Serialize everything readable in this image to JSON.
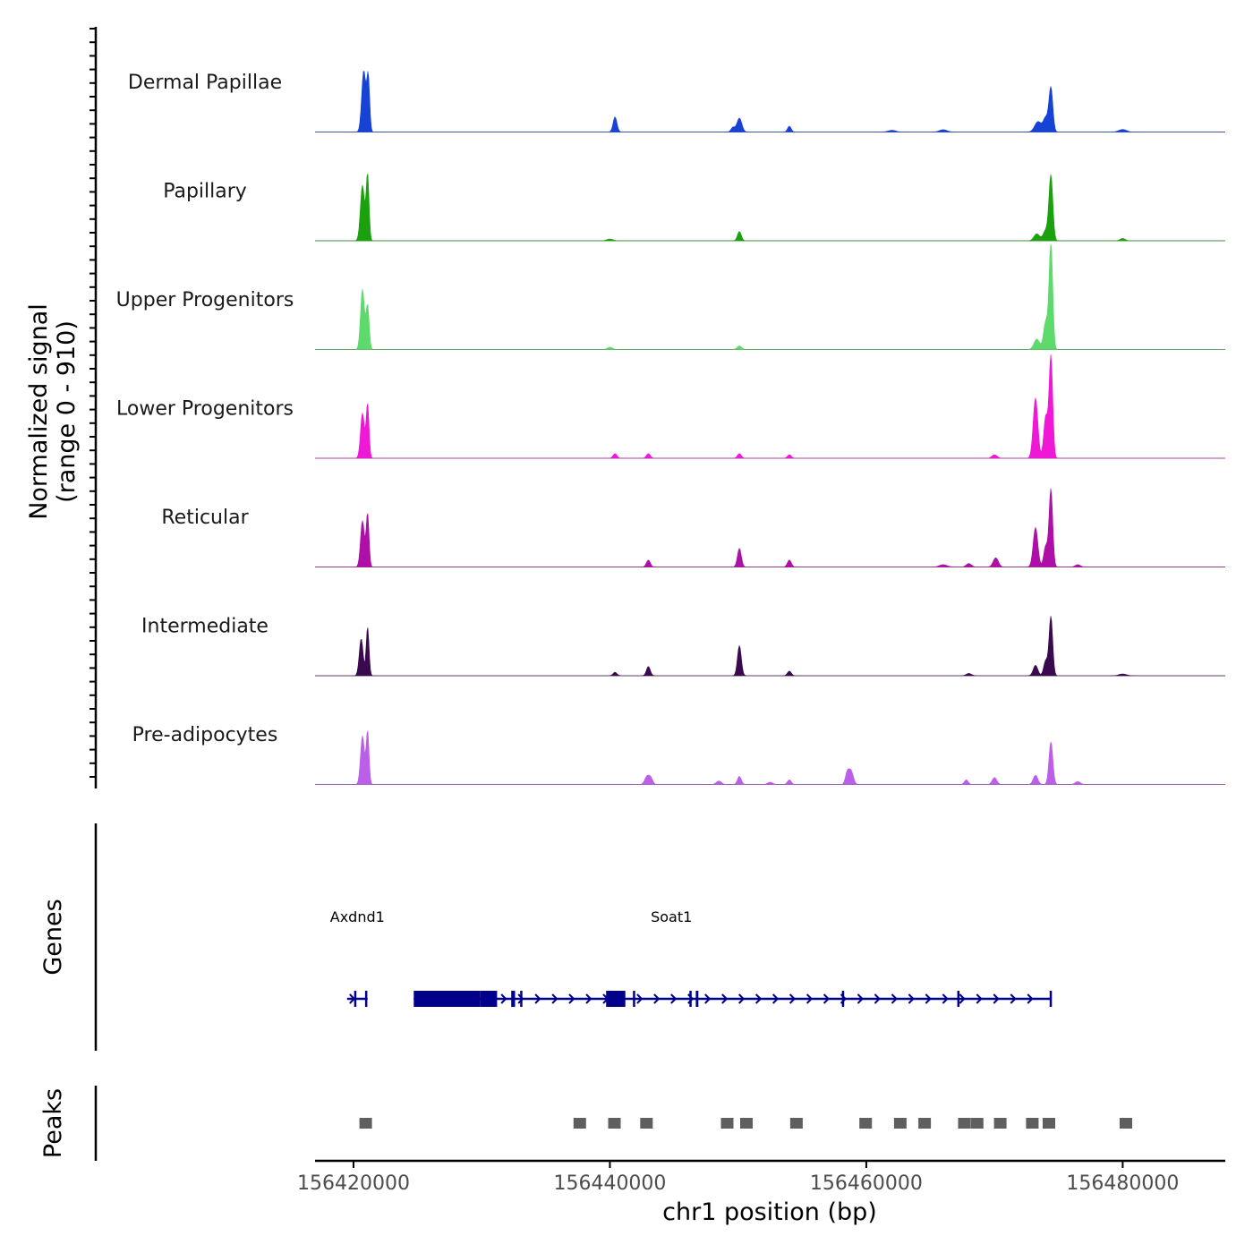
{
  "chart_data": {
    "type": "genome-browser",
    "region": {
      "chromosome": "chr1",
      "start": 156417000,
      "end": 156488000
    },
    "coverage": {
      "axis_title": "Normalized signal",
      "axis_subtitle": "(range 0 - 910)",
      "ylim": [
        0,
        910
      ],
      "tracks": [
        {
          "name": "Dermal Papillae",
          "color": "#1742d6",
          "peaks": [
            [
              156420800,
              530,
              160
            ],
            [
              156421150,
              470,
              110
            ],
            [
              156440400,
              130,
              150
            ],
            [
              156450100,
              120,
              190
            ],
            [
              156449600,
              40,
              150
            ],
            [
              156454000,
              50,
              140
            ],
            [
              156473400,
              90,
              260
            ],
            [
              156474000,
              120,
              190
            ],
            [
              156474400,
              380,
              150
            ],
            [
              156480000,
              22,
              300
            ],
            [
              156466000,
              20,
              300
            ],
            [
              156462000,
              15,
              300
            ]
          ]
        },
        {
          "name": "Papillary",
          "color": "#1aa10d",
          "peaks": [
            [
              156420700,
              480,
              160
            ],
            [
              156421100,
              570,
              110
            ],
            [
              156450100,
              80,
              150
            ],
            [
              156473300,
              60,
              220
            ],
            [
              156474000,
              90,
              200
            ],
            [
              156474400,
              560,
              150
            ],
            [
              156480000,
              20,
              200
            ],
            [
              156440000,
              15,
              250
            ]
          ]
        },
        {
          "name": "Upper Progenitors",
          "color": "#5ed96c",
          "peaks": [
            [
              156420700,
              520,
              150
            ],
            [
              156421100,
              380,
              120
            ],
            [
              156440000,
              20,
              200
            ],
            [
              156450100,
              30,
              180
            ],
            [
              156473300,
              90,
              220
            ],
            [
              156474000,
              240,
              170
            ],
            [
              156474400,
              920,
              140
            ]
          ]
        },
        {
          "name": "Lower Progenitors",
          "color": "#ee18d6",
          "peaks": [
            [
              156420700,
              390,
              150
            ],
            [
              156421100,
              470,
              110
            ],
            [
              156440400,
              40,
              150
            ],
            [
              156443000,
              40,
              150
            ],
            [
              156450100,
              40,
              150
            ],
            [
              156454000,
              30,
              150
            ],
            [
              156473200,
              520,
              180
            ],
            [
              156474000,
              360,
              160
            ],
            [
              156474400,
              880,
              140
            ],
            [
              156470000,
              30,
              200
            ]
          ]
        },
        {
          "name": "Reticular",
          "color": "#ae0fa6",
          "peaks": [
            [
              156420700,
              400,
              150
            ],
            [
              156421100,
              460,
              110
            ],
            [
              156443000,
              60,
              150
            ],
            [
              156450100,
              160,
              150
            ],
            [
              156454000,
              60,
              150
            ],
            [
              156470100,
              80,
              200
            ],
            [
              156473200,
              340,
              180
            ],
            [
              156474000,
              180,
              160
            ],
            [
              156474400,
              670,
              140
            ],
            [
              156468000,
              30,
              200
            ],
            [
              156466000,
              20,
              300
            ],
            [
              156476500,
              20,
              200
            ]
          ]
        },
        {
          "name": "Intermediate",
          "color": "#3a0a4e",
          "peaks": [
            [
              156420600,
              320,
              150
            ],
            [
              156421100,
              420,
              110
            ],
            [
              156443000,
              80,
              150
            ],
            [
              156450100,
              260,
              150
            ],
            [
              156454000,
              40,
              150
            ],
            [
              156440400,
              30,
              150
            ],
            [
              156473200,
              90,
              180
            ],
            [
              156474000,
              130,
              160
            ],
            [
              156474400,
              510,
              140
            ],
            [
              156468000,
              20,
              200
            ],
            [
              156480000,
              15,
              300
            ]
          ]
        },
        {
          "name": "Pre-adipocytes",
          "color": "#bb5ee8",
          "peaks": [
            [
              156420700,
              420,
              150
            ],
            [
              156421100,
              460,
              110
            ],
            [
              156442900,
              70,
              180
            ],
            [
              156443200,
              50,
              150
            ],
            [
              156448500,
              30,
              200
            ],
            [
              156450100,
              70,
              150
            ],
            [
              156454000,
              40,
              150
            ],
            [
              156458800,
              120,
              180
            ],
            [
              156458500,
              90,
              140
            ],
            [
              156467800,
              40,
              150
            ],
            [
              156470000,
              60,
              180
            ],
            [
              156473200,
              80,
              180
            ],
            [
              156474400,
              370,
              150
            ],
            [
              156476500,
              25,
              200
            ],
            [
              156452500,
              20,
              200
            ]
          ]
        }
      ]
    },
    "genes": {
      "axis_title": "Genes",
      "color": "#00008b",
      "items": [
        {
          "name": "Axdnd1",
          "start": 156419500,
          "end": 156421100,
          "strand": "-",
          "exons": [
            [
              156420050,
              156420200
            ],
            [
              156420900,
              156421050
            ]
          ]
        },
        {
          "name": "Soat1",
          "start": 156424700,
          "end": 156474400,
          "strand": "-",
          "exons": [
            [
              156424700,
              156429900
            ],
            [
              156429900,
              156431200
            ],
            [
              156432300,
              156432600
            ],
            [
              156433000,
              156433150
            ],
            [
              156439700,
              156441200
            ],
            [
              156441800,
              156441900
            ],
            [
              156446200,
              156446350
            ],
            [
              156446700,
              156446900
            ],
            [
              156458100,
              156458200
            ],
            [
              156467100,
              156467250
            ],
            [
              156474300,
              156474450
            ]
          ]
        }
      ]
    },
    "peaks": {
      "axis_title": "Peaks",
      "color": "#5f5f5f",
      "intervals": [
        [
          156420600,
          156421300
        ],
        [
          156437300,
          156438000
        ],
        [
          156440000,
          156440700
        ],
        [
          156442500,
          156443200
        ],
        [
          156448800,
          156449500
        ],
        [
          156450300,
          156451000
        ],
        [
          156454200,
          156454900
        ],
        [
          156459600,
          156460300
        ],
        [
          156462300,
          156463000
        ],
        [
          156464200,
          156464900
        ],
        [
          156467300,
          156468000
        ],
        [
          156468300,
          156469000
        ],
        [
          156470100,
          156470800
        ],
        [
          156472600,
          156473300
        ],
        [
          156473900,
          156474600
        ],
        [
          156479900,
          156480600
        ]
      ]
    },
    "x_axis": {
      "title": "chr1 position (bp)",
      "ticks": [
        {
          "value": 156420000,
          "label": "156420000"
        },
        {
          "value": 156440000,
          "label": "156440000"
        },
        {
          "value": 156460000,
          "label": "156460000"
        },
        {
          "value": 156480000,
          "label": "156480000"
        }
      ]
    }
  }
}
